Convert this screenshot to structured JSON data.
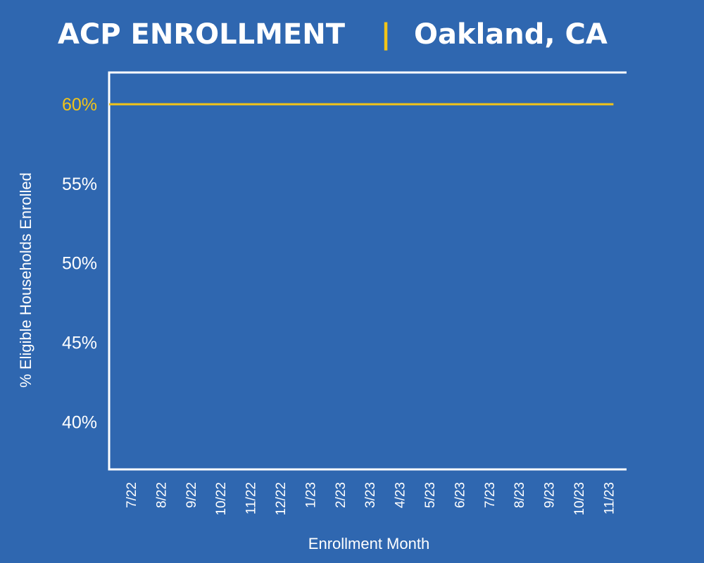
{
  "header": {
    "title_left": "ACP ENROLLMENT",
    "separator": "|",
    "title_right": "Oakland, CA"
  },
  "colors": {
    "background": "#2f67b0",
    "axis": "#ffffff",
    "series_line": "#f2c418",
    "highlight_tick": "#f2c418"
  },
  "chart_data": {
    "type": "line",
    "title": "ACP ENROLLMENT | Oakland, CA",
    "xlabel": "Enrollment Month",
    "ylabel": "% Eligible Households Enrolled",
    "categories": [
      "7/22",
      "8/22",
      "9/22",
      "10/22",
      "11/22",
      "12/22",
      "1/23",
      "2/23",
      "3/23",
      "4/23",
      "5/23",
      "6/23",
      "7/23",
      "8/23",
      "9/23",
      "10/23",
      "11/23"
    ],
    "yticks": [
      "40%",
      "45%",
      "50%",
      "55%",
      "60%"
    ],
    "ytick_values": [
      40,
      45,
      50,
      55,
      60
    ],
    "highlight_tick": "60%",
    "ylim": [
      37,
      62
    ],
    "grid": false,
    "series": [
      {
        "values": [
          60,
          60,
          60,
          60,
          60,
          60,
          60,
          60,
          60,
          60,
          60,
          60,
          60,
          60,
          60,
          60,
          60
        ]
      }
    ]
  }
}
